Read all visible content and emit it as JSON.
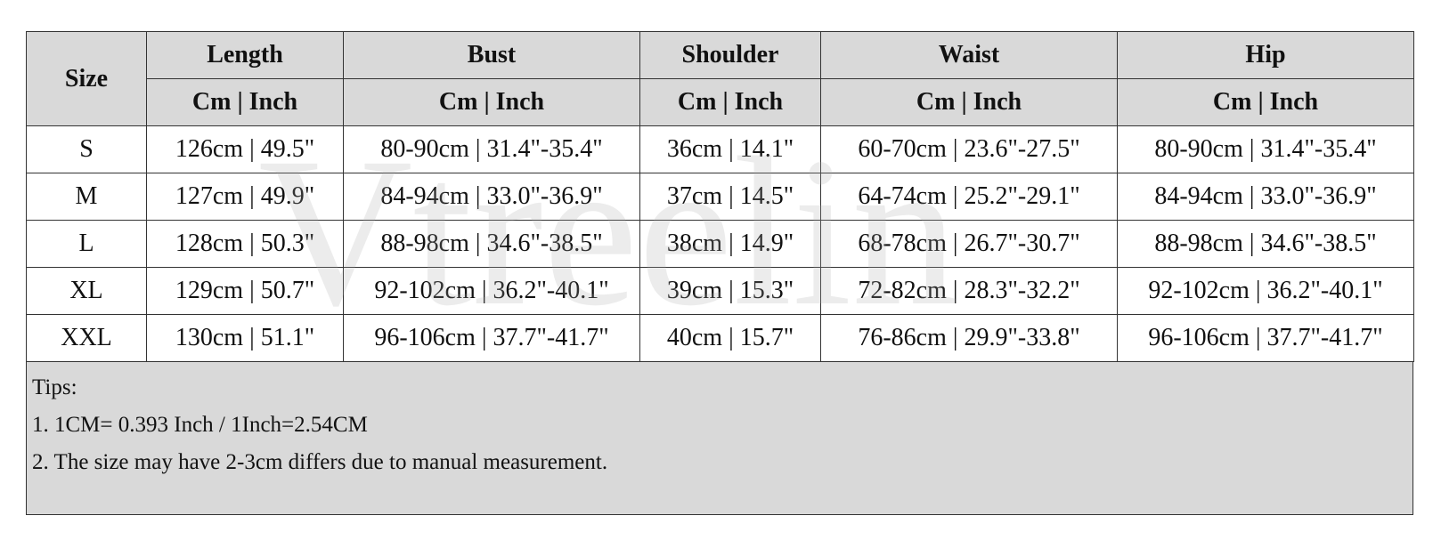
{
  "table": {
    "header": [
      "Size",
      "Length",
      "Bust",
      "Shoulder",
      "Waist",
      "Hip"
    ],
    "subheader": [
      "Cm | Inch",
      "Cm | Inch",
      "Cm | Inch",
      "Cm | Inch",
      "Cm | Inch"
    ],
    "rows": [
      [
        "S",
        "126cm | 49.5\"",
        "80-90cm | 31.4\"-35.4\"",
        "36cm | 14.1\"",
        "60-70cm | 23.6\"-27.5\"",
        "80-90cm | 31.4\"-35.4\""
      ],
      [
        "M",
        "127cm | 49.9\"",
        "84-94cm | 33.0\"-36.9\"",
        "37cm | 14.5\"",
        "64-74cm | 25.2\"-29.1\"",
        "84-94cm | 33.0\"-36.9\""
      ],
      [
        "L",
        "128cm | 50.3\"",
        "88-98cm | 34.6\"-38.5\"",
        "38cm | 14.9\"",
        "68-78cm | 26.7\"-30.7\"",
        "88-98cm | 34.6\"-38.5\""
      ],
      [
        "XL",
        "129cm | 50.7\"",
        "92-102cm | 36.2\"-40.1\"",
        "39cm | 15.3\"",
        "72-82cm | 28.3\"-32.2\"",
        "92-102cm | 36.2\"-40.1\""
      ],
      [
        "XXL",
        "130cm | 51.1\"",
        "96-106cm | 37.7\"-41.7\"",
        "40cm | 15.7\"",
        "76-86cm | 29.9\"-33.8\"",
        "96-106cm | 37.7\"-41.7\""
      ]
    ]
  },
  "tips": {
    "title": "Tips:",
    "lines": [
      "1. 1CM= 0.393 Inch / 1Inch=2.54CM",
      "2. The size may have 2-3cm differs due to manual measurement."
    ]
  },
  "watermark": "Vtreelin"
}
